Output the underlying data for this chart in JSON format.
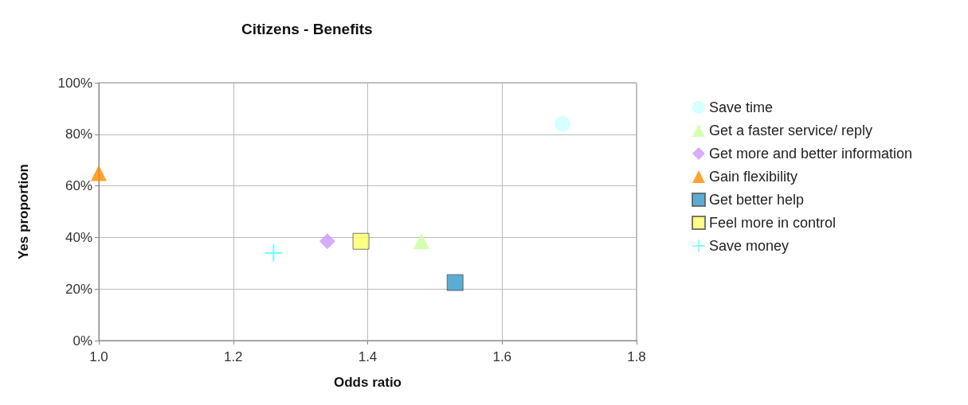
{
  "chart_data": {
    "type": "scatter",
    "title": "Citizens - Benefits",
    "xlabel": "Odds ratio",
    "ylabel": "Yes proportion",
    "xlim": [
      1.0,
      1.8
    ],
    "xticks": [
      {
        "value": 1.0,
        "label": "1.0"
      },
      1.2,
      1.4,
      1.6,
      {
        "value": 1.8,
        "label": "1.8"
      }
    ],
    "ylim": [
      0,
      100
    ],
    "yticks": [
      {
        "value": 0,
        "label": "0%"
      },
      {
        "value": 20,
        "label": "20%"
      },
      {
        "value": 40,
        "label": "40%"
      },
      {
        "value": 60,
        "label": "60%"
      },
      {
        "value": 80,
        "label": "80%"
      },
      {
        "value": 100,
        "label": "100%"
      }
    ],
    "grid": true,
    "legend": "right",
    "series": [
      {
        "name": "Save time",
        "color": "#ccffff",
        "marker": "circle",
        "x": [
          1.69
        ],
        "values": [
          84
        ]
      },
      {
        "name": "Get a faster service/ reply",
        "color": "#ccff99",
        "marker": "triangle",
        "x": [
          1.48
        ],
        "values": [
          38.5
        ]
      },
      {
        "name": "Get more and better information",
        "color": "#cc99ff",
        "marker": "diamond",
        "x": [
          1.34
        ],
        "values": [
          38.5
        ]
      },
      {
        "name": "Gain flexibility",
        "color": "#ff8c00",
        "marker": "triangle",
        "x": [
          1.0
        ],
        "values": [
          65
        ]
      },
      {
        "name": "Get better help",
        "color": "#3399cc",
        "marker": "square",
        "x": [
          1.53
        ],
        "values": [
          22.5
        ]
      },
      {
        "name": "Feel more in control",
        "color": "#ffff66",
        "marker": "square",
        "x": [
          1.39
        ],
        "values": [
          38.5
        ]
      },
      {
        "name": "Save money",
        "color": "#33ffff",
        "marker": "cross",
        "x": [
          1.26
        ],
        "values": [
          34
        ]
      }
    ]
  }
}
